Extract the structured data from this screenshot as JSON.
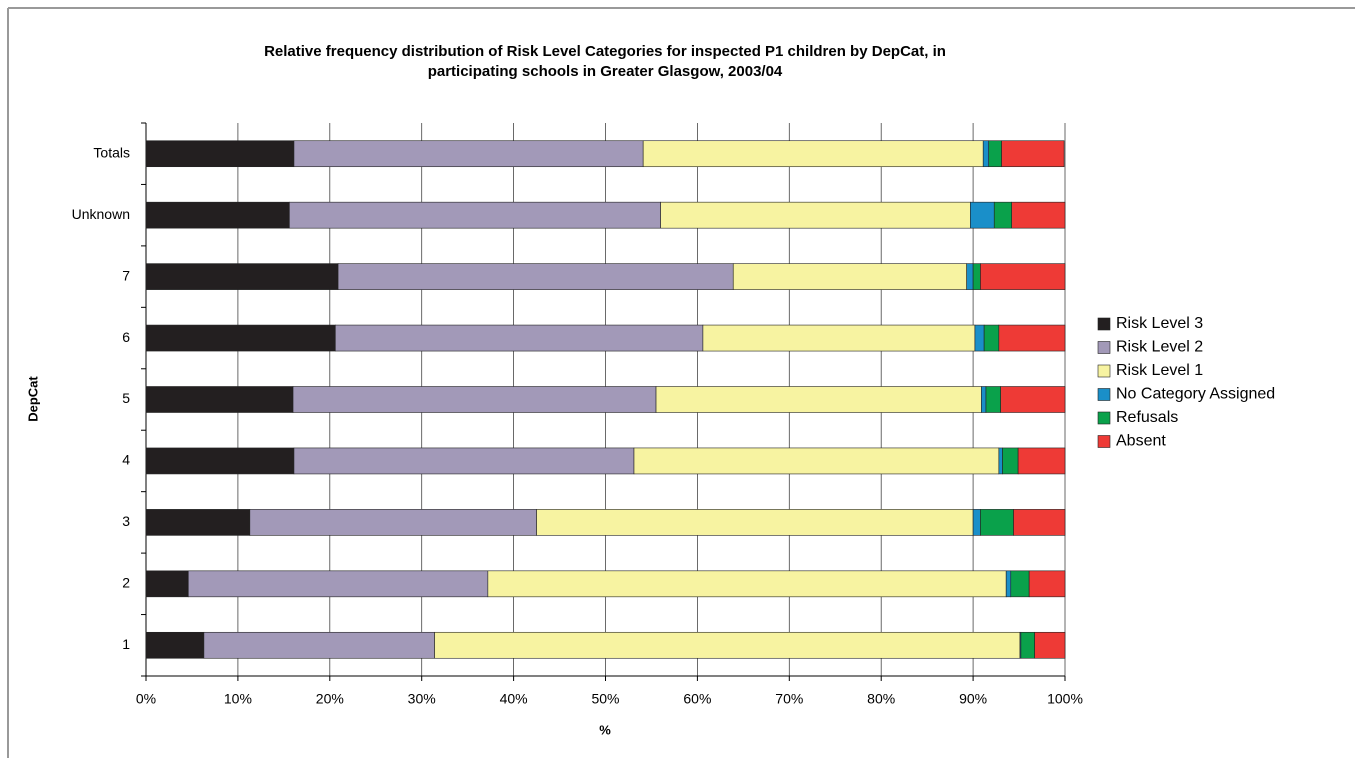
{
  "chart_data": {
    "type": "stacked-bar-horizontal",
    "title": "Relative frequency distribution of Risk Level Categories for inspected P1 children by DepCat, in participating schools in Greater Glasgow, 2003/04",
    "x_label": "%",
    "y_label": "DepCat",
    "categories": [
      "1",
      "2",
      "3",
      "4",
      "5",
      "6",
      "7",
      "Unknown",
      "Totals"
    ],
    "series": [
      {
        "name": "Risk Level 3",
        "color": "#231f20",
        "values": [
          6.3,
          4.6,
          11.3,
          16.1,
          16.0,
          20.6,
          20.9,
          15.6,
          16.1
        ]
      },
      {
        "name": "Risk Level 2",
        "color": "#a299b8",
        "values": [
          25.1,
          32.6,
          31.2,
          37.0,
          39.5,
          40.0,
          43.0,
          40.4,
          38.0
        ]
      },
      {
        "name": "Risk Level 1",
        "color": "#f7f3a1",
        "values": [
          63.7,
          56.4,
          47.5,
          39.7,
          35.4,
          29.6,
          25.4,
          33.7,
          37.0
        ]
      },
      {
        "name": "No Category Assigned",
        "color": "#1a8fc9",
        "values": [
          0.1,
          0.5,
          0.8,
          0.4,
          0.5,
          1.0,
          0.7,
          2.6,
          0.6
        ]
      },
      {
        "name": "Refusals",
        "color": "#0aa14b",
        "values": [
          1.5,
          2.0,
          3.6,
          1.7,
          1.6,
          1.6,
          0.8,
          1.9,
          1.4
        ]
      },
      {
        "name": "Absent",
        "color": "#ee3a36",
        "values": [
          3.3,
          3.9,
          5.6,
          5.1,
          7.0,
          7.2,
          9.2,
          5.8,
          6.8
        ]
      }
    ],
    "xlim": [
      0,
      100
    ],
    "xticks": [
      {
        "value": 0,
        "label": "0%"
      },
      {
        "value": 10,
        "label": "10%"
      },
      {
        "value": 20,
        "label": "20%"
      },
      {
        "value": 30,
        "label": "30%"
      },
      {
        "value": 40,
        "label": "40%"
      },
      {
        "value": 50,
        "label": "50%"
      },
      {
        "value": 60,
        "label": "60%"
      },
      {
        "value": 70,
        "label": "70%"
      },
      {
        "value": 80,
        "label": "80%"
      },
      {
        "value": 90,
        "label": "90%"
      },
      {
        "value": 100,
        "label": "100%"
      }
    ],
    "grid": true,
    "legend": "right"
  }
}
